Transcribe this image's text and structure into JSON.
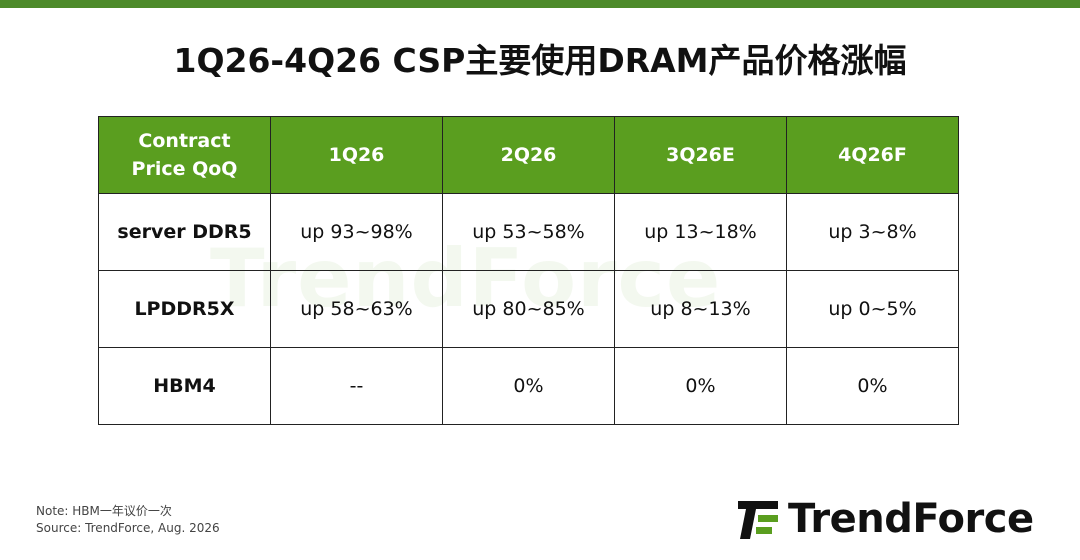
{
  "header": {
    "title": "1Q26-4Q26 CSP主要使用DRAM产品价格涨幅"
  },
  "table": {
    "columns": [
      "Contract Price QoQ",
      "1Q26",
      "2Q26",
      "3Q26E",
      "4Q26F"
    ],
    "rows": [
      [
        "server DDR5",
        "up 93~98%",
        "up 53~58%",
        "up 13~18%",
        "up 3~8%"
      ],
      [
        "LPDDR5X",
        "up 58~63%",
        "up 80~85%",
        "up 8~13%",
        "up 0~5%"
      ],
      [
        "HBM4",
        "--",
        "0%",
        "0%",
        "0%"
      ]
    ]
  },
  "footer": {
    "note": "Note: HBM一年议价一次",
    "source": "Source: TrendForce, Aug. 2026"
  },
  "logo": "TrendForce"
}
